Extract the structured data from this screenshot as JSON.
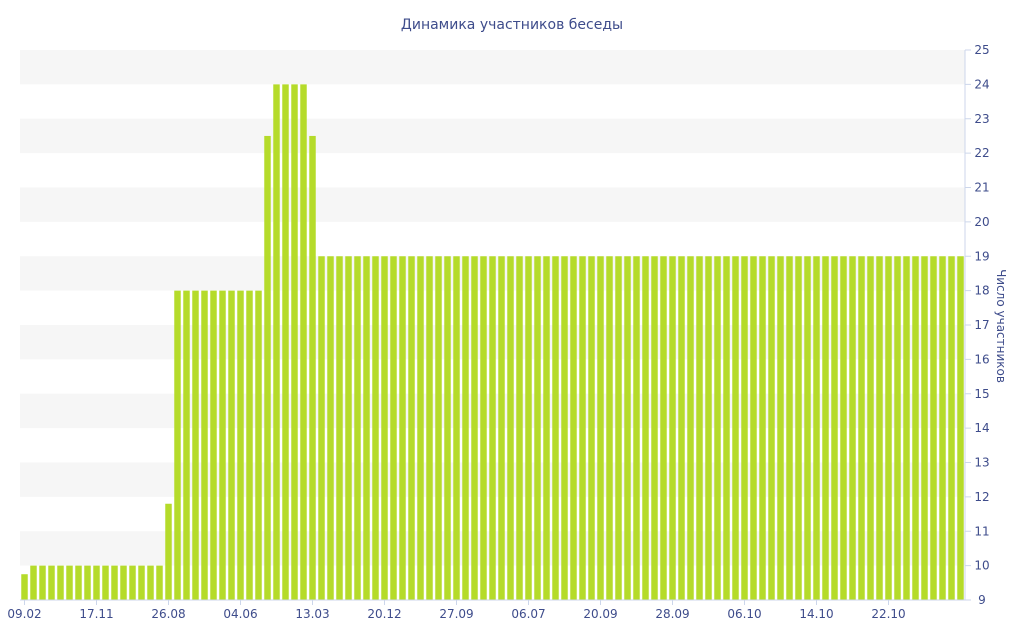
{
  "chart_data": {
    "type": "bar",
    "title": "Динамика участников беседы",
    "xlabel": "",
    "ylabel": "Число участников",
    "ylim": [
      9,
      25
    ],
    "y_ticks": [
      9,
      10,
      11,
      12,
      13,
      14,
      15,
      16,
      17,
      18,
      19,
      20,
      21,
      22,
      23,
      24,
      25
    ],
    "y_axis_side": "right",
    "x_tick_labels": [
      "09.02",
      "17.11",
      "26.08",
      "04.06",
      "13.03",
      "20.12",
      "27.09",
      "06.07",
      "20.09",
      "28.09",
      "06.10",
      "14.10",
      "22.10"
    ],
    "x_tick_indices": [
      0,
      8,
      16,
      24,
      32,
      40,
      48,
      56,
      64,
      72,
      80,
      88,
      96
    ],
    "values": [
      9.75,
      10,
      10,
      10,
      10,
      10,
      10,
      10,
      10,
      10,
      10,
      10,
      10,
      10,
      10,
      10,
      11.8,
      18,
      18,
      18,
      18,
      18,
      18,
      18,
      18,
      18,
      18,
      22.5,
      24,
      24,
      24,
      24,
      22.5,
      19,
      19,
      19,
      19,
      19,
      19,
      19,
      19,
      19,
      19,
      19,
      19,
      19,
      19,
      19,
      19,
      19,
      19,
      19,
      19,
      19,
      19,
      19,
      19,
      19,
      19,
      19,
      19,
      19,
      19,
      19,
      19,
      19,
      19,
      19,
      19,
      19,
      19,
      19,
      19,
      19,
      19,
      19,
      19,
      19,
      19,
      19,
      19,
      19,
      19,
      19,
      19,
      19,
      19,
      19,
      19,
      19,
      19,
      19,
      19,
      19,
      19,
      19,
      19,
      19,
      19,
      19,
      19,
      19,
      19,
      19,
      19
    ],
    "bar_color": "#b5db2a",
    "band_color": "#f6f6f6",
    "text_color": "#3e4c8b"
  }
}
